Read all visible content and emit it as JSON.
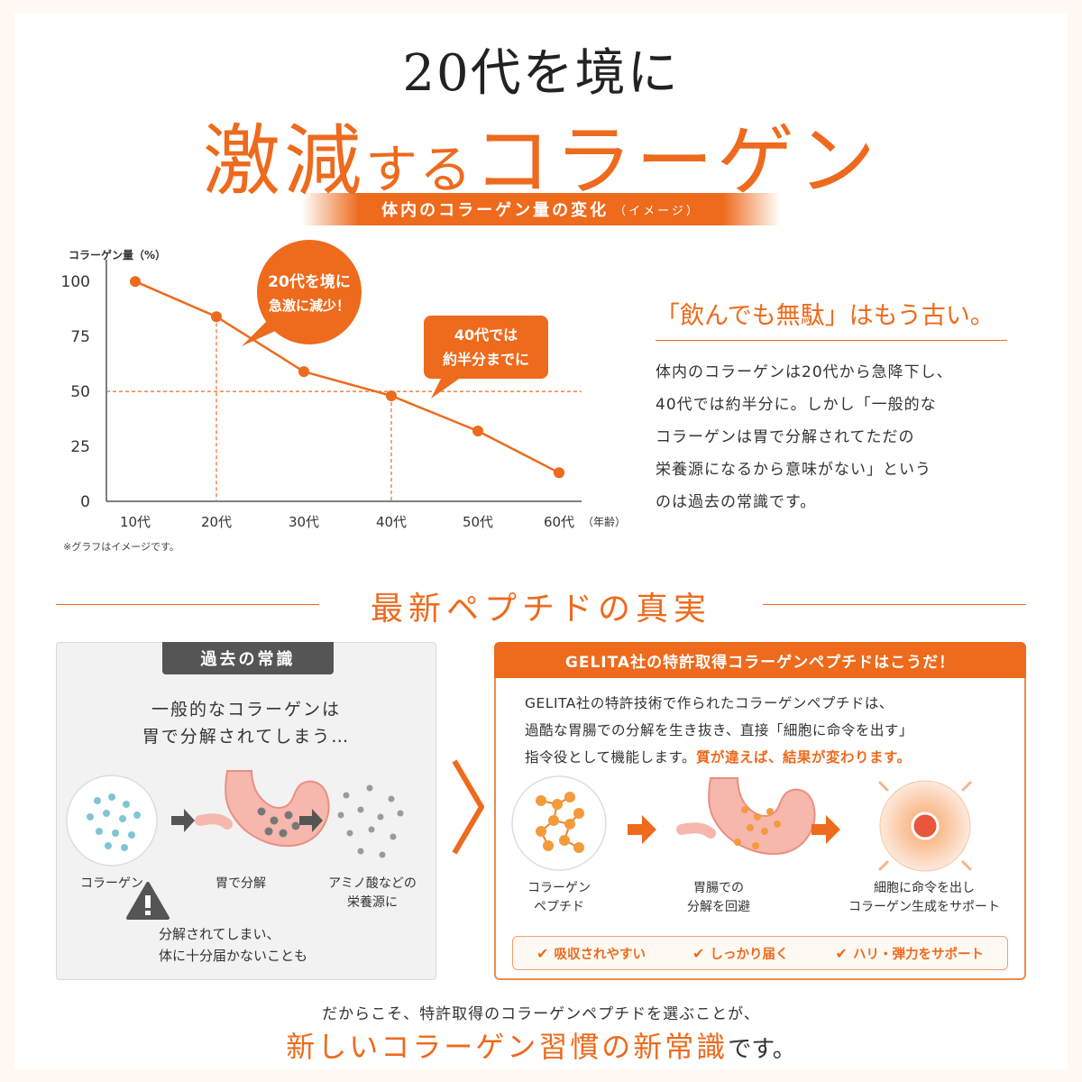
{
  "headline": {
    "line1": "20代を境に",
    "line2_a": "激減",
    "line2_b": "する",
    "line2_c": "コラーゲン"
  },
  "banner": {
    "label": "体内のコラーゲン量の変化",
    "sub": "（イメージ）"
  },
  "chart_data": {
    "type": "line",
    "ylabel": "コラーゲン量（%）",
    "xlabel": "（年齢）",
    "categories": [
      "10代",
      "20代",
      "30代",
      "40代",
      "50代",
      "60代"
    ],
    "values": [
      100,
      84,
      59,
      48,
      32,
      13
    ],
    "yticks": [
      0,
      25,
      50,
      75,
      100
    ],
    "ylim": [
      0,
      105
    ],
    "grid": false,
    "color": "#ee6a1c",
    "callouts": [
      {
        "line1": "20代を境に",
        "line2": "急激に減少！"
      },
      {
        "line1": "40代では",
        "line2": "約半分までに"
      }
    ],
    "footnote": "※グラフはイメージです。"
  },
  "quote": {
    "title": "「飲んでも無駄」はもう古い。",
    "lines": [
      "体内のコラーゲンは20代から急降下し、",
      "40代では約半分に。しかし「一般的な",
      "コラーゲンは胃で分解されてただの",
      "栄養源になるから意味がない」という",
      "のは過去の常識です。"
    ]
  },
  "section": {
    "title": "最新ペプチドの真実"
  },
  "left_panel": {
    "tab": "過去の常識",
    "head1": "一般的なコラーゲンは",
    "head2": "胃で分解されてしまう…",
    "cap1": "コラーゲン",
    "cap2": "胃で分解",
    "cap3a": "アミノ酸などの",
    "cap3b": "栄養源に",
    "warn1": "分解されてしまい、",
    "warn2": "体に十分届かないことも"
  },
  "right_panel": {
    "head": "GELITA社の特許取得コラーゲンペプチドはこうだ！",
    "body1": "GELITA社の特許技術で作られたコラーゲンペプチドは、",
    "body2": "過酷な胃腸での分解を生き抜き、直接「細胞に命令を出す」",
    "body3a": "指令役として機能します。",
    "body3b": "質が違えば、結果が変わります。",
    "cap1a": "コラーゲン",
    "cap1b": "ペプチド",
    "cap2a": "胃腸での",
    "cap2b": "分解を回避",
    "cap3a": "細胞に命令を出し",
    "cap3b": "コラーゲン生成をサポート",
    "benefits": [
      "吸収されやすい",
      "しっかり届く",
      "ハリ・弾力をサポート"
    ]
  },
  "bottom": {
    "line1": "だからこそ、特許取得のコラーゲンペプチドを選ぶことが、",
    "line2_a": "新しいコラーゲン習慣の新常識",
    "line2_b": "です。"
  }
}
